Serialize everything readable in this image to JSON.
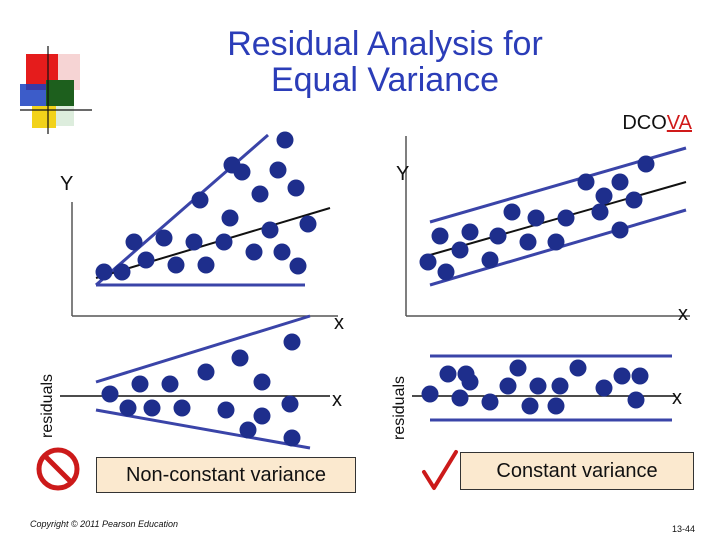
{
  "slide": {
    "title_line1": "Residual Analysis for",
    "title_line2": "Equal Variance",
    "tag_prefix": "DCO",
    "tag_highlight": "VA",
    "copyright": "Copyright © 2011 Pearson Education",
    "page_number": "13-44"
  },
  "left_panel": {
    "scatter": {
      "y_label": "Y",
      "x_label": "x"
    },
    "residual": {
      "y_label": "residuals",
      "x_label": "x"
    },
    "caption": "Non-constant variance",
    "verdict_icon": "prohibited-icon"
  },
  "right_panel": {
    "scatter": {
      "y_label": "Y",
      "x_label": "x"
    },
    "residual": {
      "y_label": "residuals",
      "x_label": "x"
    },
    "caption": "Constant variance",
    "verdict_icon": "checkmark-icon"
  },
  "colors": {
    "title": "#2b3db8",
    "point": "#1e2e8c",
    "guide_line": "#3a44a8",
    "caption_bg": "#fbe9cf",
    "prohibited": "#cc1a1a"
  }
}
